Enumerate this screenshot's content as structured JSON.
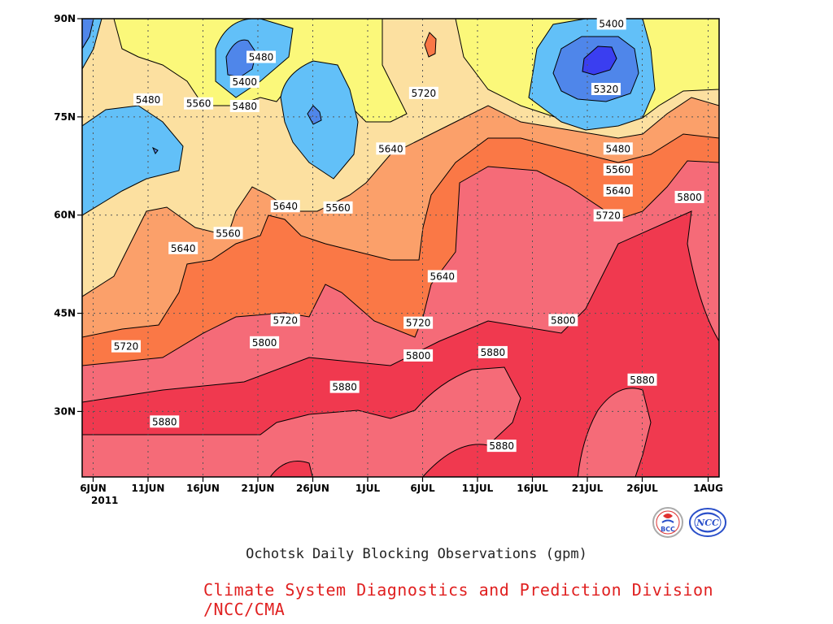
{
  "chart_data": {
    "type": "heatmap",
    "subtype": "filled-contour",
    "title": "Ochotsk Daily Blocking Observations (gpm)",
    "credit": "Climate System Diagnostics and Prediction Division /NCC/CMA",
    "x_ticks": [
      "6JUN",
      "11JUN",
      "16JUN",
      "21JUN",
      "26JUN",
      "1JUL",
      "6JUL",
      "11JUL",
      "16JUL",
      "21JUL",
      "26JUL",
      "1AUG"
    ],
    "x_year_label": "2011",
    "y_ticks": [
      "30N",
      "45N",
      "60N",
      "75N",
      "90N"
    ],
    "xlim_days_from_6jun": [
      -1,
      57
    ],
    "ylim_lat": [
      20,
      90
    ],
    "grid": true,
    "contour_levels": [
      5320,
      5400,
      5480,
      5560,
      5640,
      5720,
      5800,
      5880
    ],
    "fill_colors": [
      "#3a3ef0",
      "#4f86ea",
      "#62c0f8",
      "#fbf87a",
      "#fce0a0",
      "#fba06a",
      "#fa7846",
      "#f56b78",
      "#f0394f"
    ],
    "contour_labels": [
      {
        "text": "5400",
        "lon_day": 47.2,
        "lat": 89.2
      },
      {
        "text": "5320",
        "lon_day": 46.7,
        "lat": 79.2
      },
      {
        "text": "5480",
        "lon_day": 15.3,
        "lat": 84.1
      },
      {
        "text": "5400",
        "lon_day": 13.8,
        "lat": 80.3
      },
      {
        "text": "5480",
        "lon_day": 13.8,
        "lat": 76.6
      },
      {
        "text": "5480",
        "lon_day": 5.0,
        "lat": 77.6
      },
      {
        "text": "5560",
        "lon_day": 9.6,
        "lat": 77.0
      },
      {
        "text": "5720",
        "lon_day": 30.1,
        "lat": 78.6
      },
      {
        "text": "5640",
        "lon_day": 27.1,
        "lat": 70.1
      },
      {
        "text": "5480",
        "lon_day": 47.8,
        "lat": 70.1
      },
      {
        "text": "5560",
        "lon_day": 47.8,
        "lat": 66.9
      },
      {
        "text": "5640",
        "lon_day": 47.8,
        "lat": 63.7
      },
      {
        "text": "5640",
        "lon_day": 17.5,
        "lat": 61.3
      },
      {
        "text": "5560",
        "lon_day": 22.3,
        "lat": 61.1
      },
      {
        "text": "5800",
        "lon_day": 54.3,
        "lat": 62.7
      },
      {
        "text": "5720",
        "lon_day": 46.9,
        "lat": 59.9
      },
      {
        "text": "5560",
        "lon_day": 12.3,
        "lat": 57.2
      },
      {
        "text": "5640",
        "lon_day": 8.2,
        "lat": 54.9
      },
      {
        "text": "5640",
        "lon_day": 31.8,
        "lat": 50.6
      },
      {
        "text": "5720",
        "lon_day": 17.5,
        "lat": 43.9
      },
      {
        "text": "5720",
        "lon_day": 29.6,
        "lat": 43.5
      },
      {
        "text": "5800",
        "lon_day": 42.8,
        "lat": 43.9
      },
      {
        "text": "5800",
        "lon_day": 15.6,
        "lat": 40.5
      },
      {
        "text": "5720",
        "lon_day": 3.0,
        "lat": 39.9
      },
      {
        "text": "5800",
        "lon_day": 29.6,
        "lat": 38.5
      },
      {
        "text": "5880",
        "lon_day": 36.4,
        "lat": 39.0
      },
      {
        "text": "5880",
        "lon_day": 22.9,
        "lat": 33.7
      },
      {
        "text": "5880",
        "lon_day": 50.0,
        "lat": 34.8
      },
      {
        "text": "5880",
        "lon_day": 6.5,
        "lat": 28.4
      },
      {
        "text": "5880",
        "lon_day": 37.2,
        "lat": 24.7
      }
    ]
  },
  "logos": {
    "left": {
      "text": "BCC",
      "icon": "bcc-logo-icon"
    },
    "right": {
      "text": "NCC",
      "icon": "ncc-logo-icon"
    }
  }
}
